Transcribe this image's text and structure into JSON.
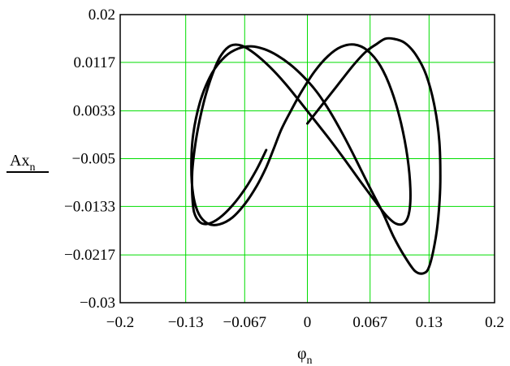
{
  "chart_data": {
    "type": "line",
    "title": "",
    "xlabel": "φ",
    "xlabel_subscript": "n",
    "ylabel": "Ax",
    "ylabel_subscript": "n",
    "xlim": [
      -0.2,
      0.2
    ],
    "ylim": [
      -0.03,
      0.02
    ],
    "grid": true,
    "colors": {
      "grid": "#00dd00",
      "line": "#000000",
      "frame": "#000000"
    },
    "xticks": [
      -0.2,
      -0.13,
      -0.067,
      0,
      0.067,
      0.13,
      0.2
    ],
    "xtick_labels": [
      "−0.2",
      "−0.13",
      "−0.067",
      "0",
      "0.067",
      "0.13",
      "0.2"
    ],
    "yticks": [
      0.02,
      0.0117,
      0.0033,
      -0.005,
      -0.0133,
      -0.0217,
      -0.03
    ],
    "ytick_labels": [
      "0.02",
      "0.0117",
      "0.0033",
      "−0.005",
      "−0.0133",
      "−0.0217",
      "−0.03"
    ],
    "series": [
      {
        "x": [
          0.0,
          0.016,
          0.032,
          0.048,
          0.062,
          0.074,
          0.083,
          0.092,
          0.104,
          0.116,
          0.127,
          0.136,
          0.141,
          0.142,
          0.14,
          0.136,
          0.13,
          0.124,
          0.115,
          0.104,
          0.092,
          0.08,
          0.066,
          0.052,
          0.038,
          0.024,
          0.01,
          -0.004,
          -0.018,
          -0.032,
          -0.046,
          -0.06,
          -0.074,
          -0.088,
          -0.102,
          -0.114,
          -0.122,
          -0.124,
          -0.122,
          -0.116,
          -0.106,
          -0.094,
          -0.08,
          -0.066,
          -0.054,
          -0.044,
          -0.036,
          -0.028,
          -0.018,
          -0.006,
          0.008,
          0.022,
          0.036,
          0.05,
          0.064,
          0.078,
          0.09,
          0.1,
          0.107,
          0.11,
          0.109,
          0.104,
          0.095,
          0.084,
          0.071,
          0.056,
          0.04,
          0.024,
          0.008,
          -0.008,
          -0.024,
          -0.04,
          -0.056,
          -0.07,
          -0.082,
          -0.092,
          -0.1,
          -0.108,
          -0.115,
          -0.12,
          -0.123,
          -0.123,
          -0.121,
          -0.115,
          -0.106,
          -0.094,
          -0.08,
          -0.066,
          -0.054,
          -0.044
        ],
        "y": [
          0.0011,
          0.0044,
          0.0077,
          0.011,
          0.0135,
          0.0149,
          0.0158,
          0.0158,
          0.0151,
          0.013,
          0.0095,
          0.004,
          -0.002,
          -0.009,
          -0.015,
          -0.0198,
          -0.0238,
          -0.0249,
          -0.0245,
          -0.022,
          -0.0185,
          -0.0142,
          -0.0098,
          -0.0052,
          -0.0008,
          0.0032,
          0.0066,
          0.0092,
          0.0113,
          0.0129,
          0.014,
          0.0145,
          0.0141,
          0.0127,
          0.0098,
          0.0052,
          -0.0008,
          -0.0065,
          -0.0113,
          -0.0146,
          -0.0163,
          -0.0164,
          -0.0152,
          -0.0127,
          -0.0097,
          -0.0065,
          -0.0033,
          0.0,
          0.0032,
          0.0067,
          0.0102,
          0.0128,
          0.0144,
          0.0148,
          0.0138,
          0.0111,
          0.0068,
          0.0012,
          -0.0048,
          -0.0102,
          -0.0141,
          -0.0161,
          -0.0163,
          -0.0148,
          -0.0121,
          -0.0088,
          -0.0052,
          -0.0017,
          0.0016,
          0.0049,
          0.0081,
          0.0109,
          0.0132,
          0.0146,
          0.0146,
          0.013,
          0.0103,
          0.0064,
          0.0018,
          -0.0028,
          -0.0073,
          -0.0112,
          -0.0143,
          -0.016,
          -0.0163,
          -0.0153,
          -0.0131,
          -0.0101,
          -0.0068,
          -0.0035
        ]
      }
    ]
  }
}
